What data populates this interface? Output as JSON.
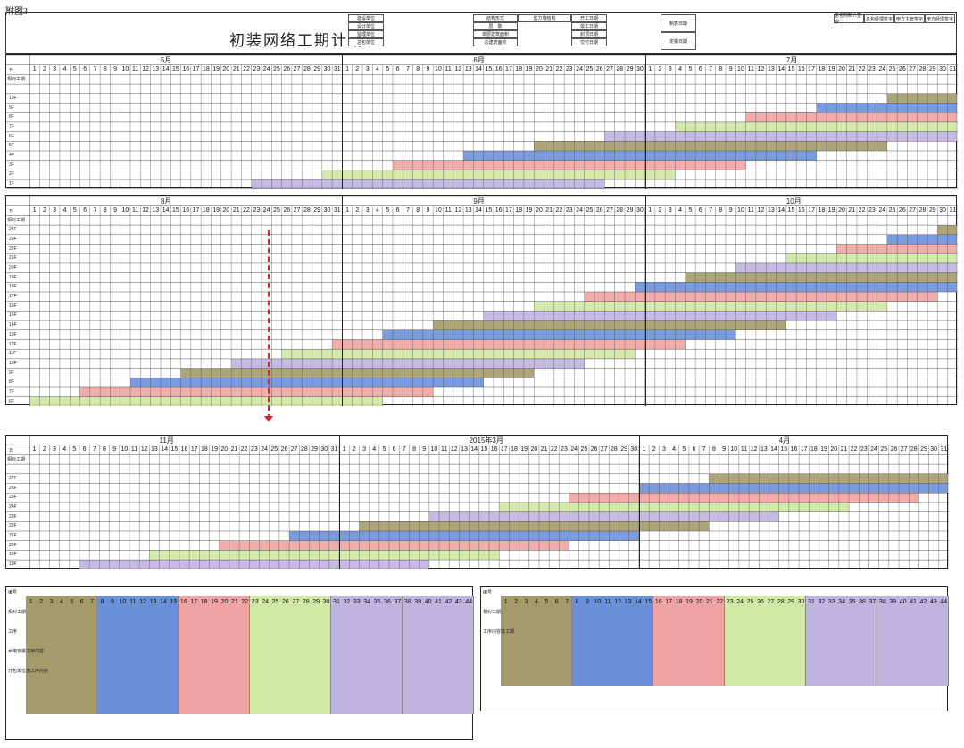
{
  "page_tag": "附图3",
  "title": "初装网络工期计划表",
  "header_labels": [
    "建设单位",
    "设计单位",
    "监理单位",
    "总包单位",
    "结构形式",
    "层　数",
    "单层建筑面积",
    "总建筑面积",
    "剪力墙结构",
    "开工日期",
    "竣工日期",
    "封顶日期",
    "交付日期",
    "制表日期",
    "定稿日期",
    "总包商制人签字",
    "总包经理签字",
    "甲方主管签字",
    "甲方经理签字"
  ],
  "row_labels": {
    "day": "日",
    "net_days": "相对工期"
  },
  "blocks": [
    {
      "months": [
        "5月",
        "6月",
        "7月"
      ],
      "floors": [
        "10F",
        "9F",
        "8F",
        "7F",
        "6F",
        "5F",
        "4F",
        "3F",
        "2F",
        "1F"
      ]
    },
    {
      "months": [
        "8月",
        "9月",
        "10月"
      ],
      "floors": [
        "24F",
        "23F",
        "22F",
        "21F",
        "20F",
        "19F",
        "18F",
        "17F",
        "16F",
        "15F",
        "14F",
        "13F",
        "12F",
        "11F",
        "10F",
        "9F",
        "8F",
        "7F",
        "6F"
      ]
    },
    {
      "months": [
        "11月",
        "2015年3月",
        "4月"
      ],
      "floors": [
        "27F",
        "26F",
        "25F",
        "24F",
        "23F",
        "22F",
        "21F",
        "20F",
        "19F",
        "18F"
      ]
    }
  ],
  "colors": {
    "olive": "#a59a6a",
    "blue": "#6b90d9",
    "red": "#f0a3a3",
    "green": "#cfe8a3",
    "purple": "#bfb3e0",
    "grid": "#555555",
    "arrow": "#d22233"
  },
  "legend_left": {
    "rows": [
      "编号",
      "相对工期",
      "工序",
      "水电安装工序内容",
      "分包单位施工序内容"
    ]
  },
  "legend_right": {
    "rows": [
      "编号",
      "相对工期",
      "工序内容进工期"
    ]
  }
}
